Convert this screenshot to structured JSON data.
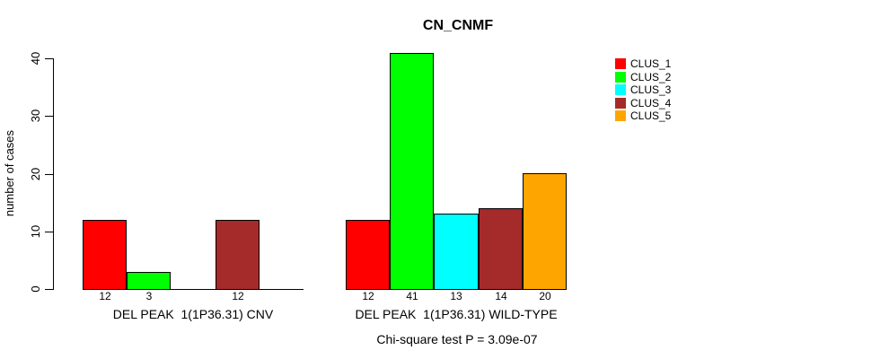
{
  "chart_data": {
    "type": "bar",
    "title": "CN_CNMF",
    "ylabel": "number of cases",
    "xlabel": "",
    "ylim": [
      0,
      40
    ],
    "yticks": [
      0,
      10,
      20,
      30,
      40
    ],
    "grid": false,
    "footnote": "Chi-square test P = 3.09e-07",
    "legend": {
      "position": "right",
      "entries": [
        {
          "label": "CLUS_1",
          "color": "#FF0000"
        },
        {
          "label": "CLUS_2",
          "color": "#00FF00"
        },
        {
          "label": "CLUS_3",
          "color": "#00FFFF"
        },
        {
          "label": "CLUS_4",
          "color": "#A52A2A"
        },
        {
          "label": "CLUS_5",
          "color": "#FFA500"
        }
      ]
    },
    "groups": [
      {
        "label": "DEL PEAK  1(1P36.31) CNV",
        "values": [
          12,
          3,
          0,
          12,
          0
        ],
        "bar_labels": [
          "12",
          "3",
          "",
          "12",
          ""
        ]
      },
      {
        "label": "DEL PEAK  1(1P36.31) WILD-TYPE",
        "values": [
          12,
          41,
          13,
          14,
          20
        ],
        "bar_labels": [
          "12",
          "41",
          "13",
          "14",
          "20"
        ]
      }
    ]
  },
  "colors": {
    "axis": "#000000",
    "text": "#000000",
    "background": "#FFFFFF"
  }
}
